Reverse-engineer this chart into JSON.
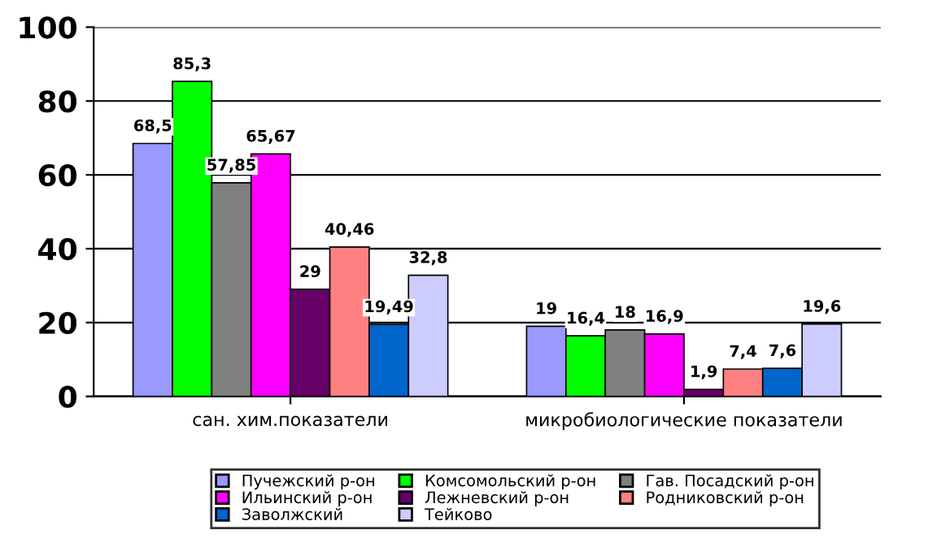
{
  "chart_data": {
    "type": "bar",
    "categories": [
      "сан. хим.показатели",
      "микробиологические показатели"
    ],
    "series": [
      {
        "name": "Пучежский р-он",
        "color": "#9999ff",
        "values": [
          68.5,
          19
        ],
        "value_labels": [
          "68,5",
          "19"
        ]
      },
      {
        "name": "Комсомольский р-он",
        "color": "#00ff00",
        "values": [
          85.3,
          16.4
        ],
        "value_labels": [
          "85,3",
          "16,4"
        ]
      },
      {
        "name": "Гав. Посадский р-он",
        "color": "#808080",
        "values": [
          57.85,
          18
        ],
        "value_labels": [
          "57,85",
          "18"
        ]
      },
      {
        "name": "Ильинский р-он",
        "color": "#ff00ff",
        "values": [
          65.67,
          16.9
        ],
        "value_labels": [
          "65,67",
          "16,9"
        ]
      },
      {
        "name": "Лежневский р-он",
        "color": "#660066",
        "values": [
          29,
          1.9
        ],
        "value_labels": [
          "29",
          "1,9"
        ]
      },
      {
        "name": "Родниковский р-он",
        "color": "#ff8080",
        "values": [
          40.46,
          7.4
        ],
        "value_labels": [
          "40,46",
          "7,4"
        ]
      },
      {
        "name": "Заволжский",
        "color": "#0066cc",
        "values": [
          19.49,
          7.6
        ],
        "value_labels": [
          "19,49",
          "7,6"
        ]
      },
      {
        "name": "Тейково",
        "color": "#ccccff",
        "values": [
          32.8,
          19.6
        ],
        "value_labels": [
          "32,8",
          "19,6"
        ]
      }
    ],
    "ylim": [
      0,
      100
    ],
    "yticks": [
      0,
      20,
      40,
      60,
      80,
      100
    ],
    "grid": "y",
    "legend": "bottom"
  }
}
